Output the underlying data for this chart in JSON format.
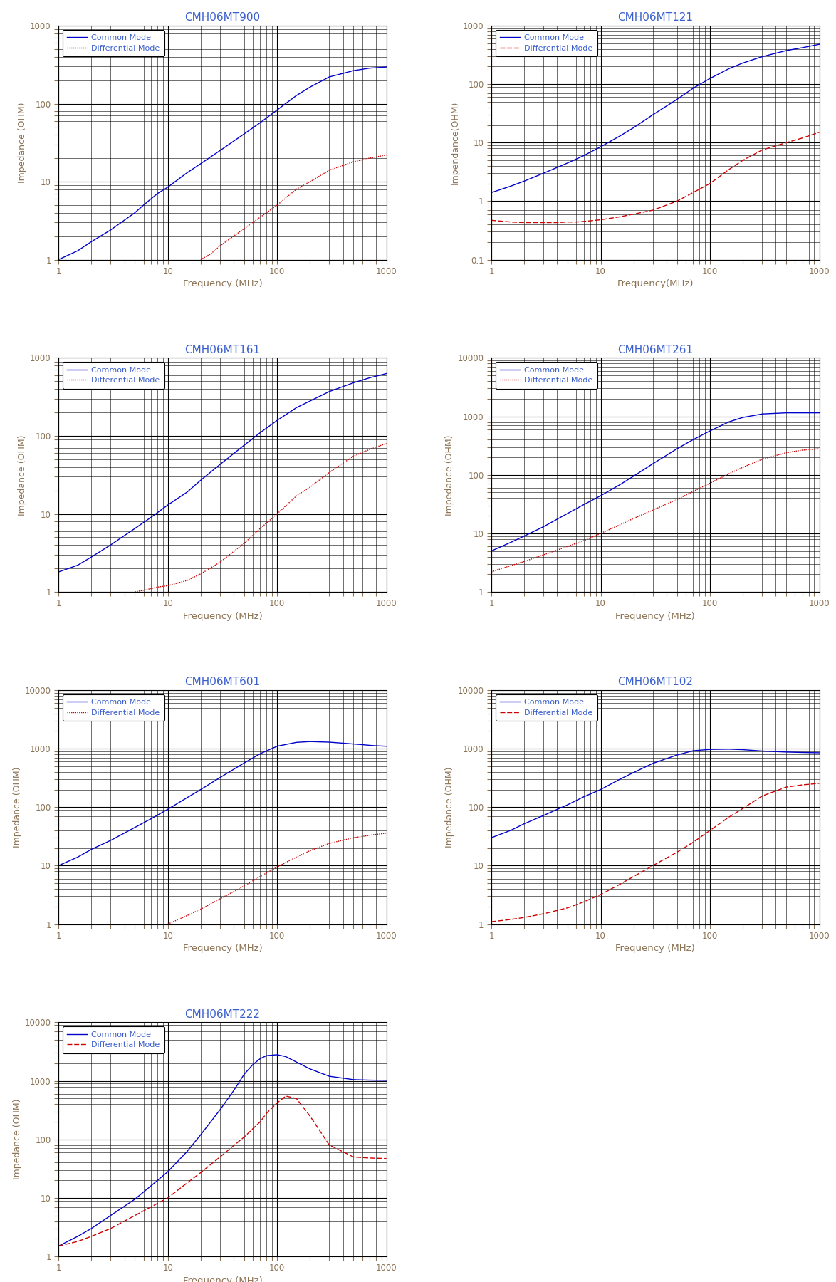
{
  "charts": [
    {
      "title": "CMH06MT900",
      "ylabel": "Impedance (OHM)",
      "xlabel": "Frequency (MHz)",
      "xlim": [
        1,
        1000
      ],
      "ylim": [
        1,
        1000
      ],
      "common_mode": {
        "freq": [
          1,
          1.5,
          2,
          3,
          4,
          5,
          6,
          7,
          8,
          10,
          15,
          20,
          30,
          50,
          70,
          100,
          150,
          200,
          300,
          500,
          700,
          1000
        ],
        "imp": [
          1.0,
          1.3,
          1.7,
          2.4,
          3.2,
          4.0,
          5.0,
          6.0,
          7.0,
          8.5,
          13,
          17,
          25,
          41,
          57,
          83,
          127,
          163,
          220,
          265,
          285,
          295
        ]
      },
      "diff_mode": {
        "freq": [
          20,
          25,
          30,
          40,
          50,
          60,
          70,
          80,
          100,
          150,
          200,
          300,
          500,
          700,
          1000
        ],
        "imp": [
          1.0,
          1.2,
          1.5,
          2.0,
          2.5,
          3.0,
          3.5,
          4.0,
          5.0,
          8.0,
          10,
          14,
          18,
          20,
          22
        ]
      }
    },
    {
      "title": "CMH06MT121",
      "ylabel": "Impendance(OHM)",
      "xlabel": "Frequency(MHz)",
      "xlim": [
        1,
        1000
      ],
      "ylim": [
        0.1,
        1000
      ],
      "common_mode": {
        "freq": [
          1,
          1.5,
          2,
          3,
          5,
          7,
          10,
          15,
          20,
          30,
          50,
          70,
          100,
          150,
          200,
          300,
          500,
          700,
          1000
        ],
        "imp": [
          1.4,
          1.8,
          2.2,
          3.0,
          4.5,
          6.0,
          8.5,
          13,
          18,
          30,
          55,
          85,
          125,
          185,
          230,
          295,
          375,
          420,
          480
        ]
      },
      "diff_mode": {
        "freq": [
          1,
          1.5,
          2,
          3,
          4,
          5,
          6,
          7,
          8,
          10,
          15,
          20,
          30,
          50,
          70,
          100,
          150,
          200,
          300,
          500,
          700,
          1000
        ],
        "imp": [
          0.47,
          0.44,
          0.43,
          0.43,
          0.43,
          0.44,
          0.44,
          0.45,
          0.46,
          0.48,
          0.54,
          0.6,
          0.7,
          1.0,
          1.4,
          2.0,
          3.5,
          5.0,
          7.5,
          10,
          12,
          15
        ]
      }
    },
    {
      "title": "CMH06MT161",
      "ylabel": "Impedance (OHM)",
      "xlabel": "Frequency (MHz)",
      "xlim": [
        1,
        1000
      ],
      "ylim": [
        1,
        1000
      ],
      "common_mode": {
        "freq": [
          1,
          1.5,
          2,
          3,
          5,
          7,
          10,
          15,
          20,
          30,
          50,
          70,
          100,
          150,
          200,
          300,
          500,
          700,
          1000
        ],
        "imp": [
          1.8,
          2.2,
          2.8,
          4.0,
          6.5,
          9.0,
          13,
          19,
          27,
          43,
          76,
          110,
          158,
          230,
          280,
          370,
          480,
          555,
          630
        ]
      },
      "diff_mode": {
        "freq": [
          5,
          6,
          7,
          8,
          10,
          15,
          20,
          30,
          50,
          70,
          100,
          150,
          200,
          300,
          500,
          700,
          1000
        ],
        "imp": [
          1.0,
          1.05,
          1.1,
          1.15,
          1.2,
          1.4,
          1.7,
          2.4,
          4.2,
          6.5,
          10,
          17,
          22,
          34,
          55,
          67,
          80
        ]
      }
    },
    {
      "title": "CMH06MT261",
      "ylabel": "Impedance (OHM)",
      "xlabel": "Frequency (MHz)",
      "xlim": [
        1,
        1000
      ],
      "ylim": [
        1,
        10000
      ],
      "common_mode": {
        "freq": [
          1,
          1.5,
          2,
          3,
          5,
          7,
          10,
          15,
          20,
          30,
          50,
          70,
          100,
          150,
          200,
          300,
          500,
          700,
          1000
        ],
        "imp": [
          5,
          7,
          9,
          13,
          22,
          31,
          44,
          68,
          95,
          155,
          280,
          400,
          565,
          810,
          960,
          1100,
          1150,
          1150,
          1150
        ]
      },
      "diff_mode": {
        "freq": [
          1,
          1.5,
          2,
          3,
          5,
          7,
          10,
          15,
          20,
          30,
          50,
          70,
          100,
          150,
          200,
          300,
          500,
          700,
          1000
        ],
        "imp": [
          2.2,
          2.8,
          3.3,
          4.3,
          6.0,
          7.5,
          10,
          14,
          18,
          25,
          38,
          52,
          72,
          105,
          135,
          185,
          240,
          265,
          280
        ]
      }
    },
    {
      "title": "CMH06MT601",
      "ylabel": "Impedance (OHM)",
      "xlabel": "Frequency (MHz)",
      "xlim": [
        1,
        1000
      ],
      "ylim": [
        1,
        10000
      ],
      "common_mode": {
        "freq": [
          1,
          1.5,
          2,
          3,
          5,
          7,
          10,
          15,
          20,
          30,
          50,
          70,
          100,
          150,
          200,
          300,
          400,
          500,
          600,
          700,
          800,
          1000
        ],
        "imp": [
          10,
          14,
          19,
          27,
          45,
          63,
          92,
          145,
          200,
          320,
          570,
          820,
          1100,
          1280,
          1320,
          1290,
          1240,
          1200,
          1170,
          1140,
          1120,
          1100
        ]
      },
      "diff_mode": {
        "freq": [
          10,
          15,
          20,
          30,
          50,
          70,
          100,
          150,
          200,
          300,
          500,
          700,
          1000
        ],
        "imp": [
          1.0,
          1.4,
          1.8,
          2.7,
          4.5,
          6.5,
          9.5,
          14,
          18,
          24,
          30,
          33,
          36
        ]
      }
    },
    {
      "title": "CMH06MT102",
      "ylabel": "Impedance (OHM)",
      "xlabel": "Frequency (MHz)",
      "xlim": [
        1,
        1000
      ],
      "ylim": [
        1,
        10000
      ],
      "common_mode": {
        "freq": [
          1,
          1.5,
          2,
          3,
          5,
          7,
          10,
          15,
          20,
          30,
          50,
          70,
          100,
          150,
          200,
          300,
          500,
          700,
          1000
        ],
        "imp": [
          30,
          40,
          52,
          72,
          110,
          150,
          200,
          300,
          390,
          560,
          780,
          920,
          970,
          980,
          960,
          910,
          875,
          860,
          850
        ]
      },
      "diff_mode": {
        "freq": [
          1,
          1.5,
          2,
          3,
          5,
          7,
          10,
          15,
          20,
          30,
          50,
          70,
          100,
          150,
          200,
          300,
          500,
          700,
          1000
        ],
        "imp": [
          1.1,
          1.2,
          1.3,
          1.5,
          1.9,
          2.4,
          3.2,
          4.8,
          6.5,
          10,
          17,
          25,
          40,
          68,
          95,
          155,
          220,
          240,
          255
        ]
      }
    },
    {
      "title": "CMH06MT222",
      "ylabel": "Impedance (OHM)",
      "xlabel": "Frequency (MHz)",
      "xlim": [
        1,
        1000
      ],
      "ylim": [
        1,
        10000
      ],
      "common_mode": {
        "freq": [
          1,
          1.5,
          2,
          3,
          5,
          7,
          10,
          15,
          20,
          30,
          40,
          50,
          60,
          70,
          80,
          100,
          120,
          150,
          200,
          300,
          500,
          700,
          1000
        ],
        "imp": [
          1.5,
          2.2,
          3.0,
          5.0,
          9.5,
          16,
          28,
          62,
          120,
          320,
          680,
          1300,
          1900,
          2400,
          2700,
          2800,
          2600,
          2100,
          1600,
          1200,
          1050,
          1030,
          1020
        ]
      },
      "diff_mode": {
        "freq": [
          1,
          1.5,
          2,
          3,
          5,
          7,
          10,
          15,
          20,
          30,
          50,
          70,
          80,
          100,
          120,
          150,
          200,
          300,
          500,
          700,
          1000
        ],
        "imp": [
          1.5,
          1.8,
          2.2,
          3.0,
          5.0,
          7.0,
          10,
          18,
          27,
          50,
          110,
          200,
          280,
          420,
          550,
          500,
          250,
          80,
          50,
          48,
          47
        ]
      }
    }
  ],
  "common_color": "#0000CD",
  "diff_color": "#CC0000",
  "title_color": "#3A5FCD",
  "axis_label_color": "#8B7355",
  "tick_color": "#8B7355",
  "grid_color": "#000000",
  "bg_color": "#FFFFFF",
  "legend_text_color": "#3A5FCD"
}
